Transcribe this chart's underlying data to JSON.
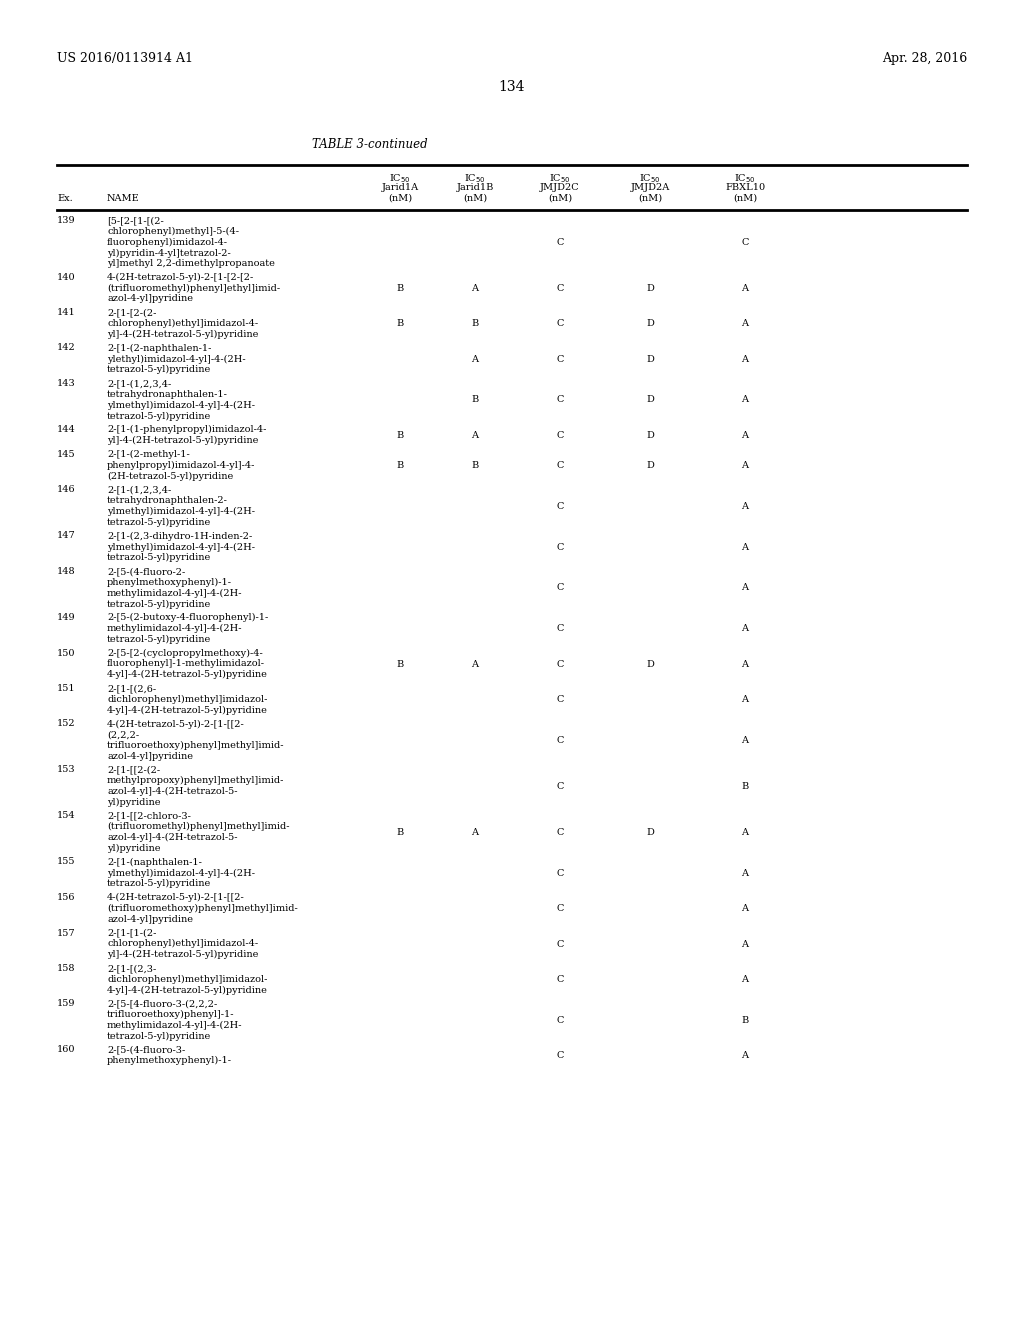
{
  "page_number": "134",
  "patent_number": "US 2016/0113914 A1",
  "patent_date": "Apr. 28, 2016",
  "table_title": "TABLE 3-continued",
  "rows": [
    {
      "ex": "139",
      "name": "[5-[2-[1-[(2-\nchlorophenyl)methyl]-5-(4-\nfluorophenyl)imidazol-4-\nyl)pyridin-4-yl]tetrazol-2-\nyl]methyl 2,2-dimethylpropanoate",
      "c1": "",
      "c2": "",
      "c3": "C",
      "c4": "",
      "c5": "C",
      "nlines": 5
    },
    {
      "ex": "140",
      "name": "4-(2H-tetrazol-5-yl)-2-[1-[2-[2-\n(trifluoromethyl)phenyl]ethyl]imid-\nazol-4-yl]pyridine",
      "c1": "B",
      "c2": "A",
      "c3": "C",
      "c4": "D",
      "c5": "A",
      "nlines": 3
    },
    {
      "ex": "141",
      "name": "2-[1-[2-(2-\nchlorophenyl)ethyl]imidazol-4-\nyl]-4-(2H-tetrazol-5-yl)pyridine",
      "c1": "B",
      "c2": "B",
      "c3": "C",
      "c4": "D",
      "c5": "A",
      "nlines": 3
    },
    {
      "ex": "142",
      "name": "2-[1-(2-naphthalen-1-\nylethyl)imidazol-4-yl]-4-(2H-\ntetrazol-5-yl)pyridine",
      "c1": "",
      "c2": "A",
      "c3": "C",
      "c4": "D",
      "c5": "A",
      "nlines": 3
    },
    {
      "ex": "143",
      "name": "2-[1-(1,2,3,4-\ntetrahydronaphthalen-1-\nylmethyl)imidazol-4-yl]-4-(2H-\ntetrazol-5-yl)pyridine",
      "c1": "",
      "c2": "B",
      "c3": "C",
      "c4": "D",
      "c5": "A",
      "nlines": 4
    },
    {
      "ex": "144",
      "name": "2-[1-(1-phenylpropyl)imidazol-4-\nyl]-4-(2H-tetrazol-5-yl)pyridine",
      "c1": "B",
      "c2": "A",
      "c3": "C",
      "c4": "D",
      "c5": "A",
      "nlines": 2
    },
    {
      "ex": "145",
      "name": "2-[1-(2-methyl-1-\nphenylpropyl)imidazol-4-yl]-4-\n(2H-tetrazol-5-yl)pyridine",
      "c1": "B",
      "c2": "B",
      "c3": "C",
      "c4": "D",
      "c5": "A",
      "nlines": 3
    },
    {
      "ex": "146",
      "name": "2-[1-(1,2,3,4-\ntetrahydronaphthalen-2-\nylmethyl)imidazol-4-yl]-4-(2H-\ntetrazol-5-yl)pyridine",
      "c1": "",
      "c2": "",
      "c3": "C",
      "c4": "",
      "c5": "A",
      "nlines": 4
    },
    {
      "ex": "147",
      "name": "2-[1-(2,3-dihydro-1H-inden-2-\nylmethyl)imidazol-4-yl]-4-(2H-\ntetrazol-5-yl)pyridine",
      "c1": "",
      "c2": "",
      "c3": "C",
      "c4": "",
      "c5": "A",
      "nlines": 3
    },
    {
      "ex": "148",
      "name": "2-[5-(4-fluoro-2-\nphenylmethoxyphenyl)-1-\nmethylimidazol-4-yl]-4-(2H-\ntetrazol-5-yl)pyridine",
      "c1": "",
      "c2": "",
      "c3": "C",
      "c4": "",
      "c5": "A",
      "nlines": 4
    },
    {
      "ex": "149",
      "name": "2-[5-(2-butoxy-4-fluorophenyl)-1-\nmethylimidazol-4-yl]-4-(2H-\ntetrazol-5-yl)pyridine",
      "c1": "",
      "c2": "",
      "c3": "C",
      "c4": "",
      "c5": "A",
      "nlines": 3
    },
    {
      "ex": "150",
      "name": "2-[5-[2-(cyclopropylmethoxy)-4-\nfluorophenyl]-1-methylimidazol-\n4-yl]-4-(2H-tetrazol-5-yl)pyridine",
      "c1": "B",
      "c2": "A",
      "c3": "C",
      "c4": "D",
      "c5": "A",
      "nlines": 3
    },
    {
      "ex": "151",
      "name": "2-[1-[(2,6-\ndichlorophenyl)methyl]imidazol-\n4-yl]-4-(2H-tetrazol-5-yl)pyridine",
      "c1": "",
      "c2": "",
      "c3": "C",
      "c4": "",
      "c5": "A",
      "nlines": 3
    },
    {
      "ex": "152",
      "name": "4-(2H-tetrazol-5-yl)-2-[1-[[2-\n(2,2,2-\ntrifluoroethoxy)phenyl]methyl]imid-\nazol-4-yl]pyridine",
      "c1": "",
      "c2": "",
      "c3": "C",
      "c4": "",
      "c5": "A",
      "nlines": 4
    },
    {
      "ex": "153",
      "name": "2-[1-[[2-(2-\nmethylpropoxy)phenyl]methyl]imid-\nazol-4-yl]-4-(2H-tetrazol-5-\nyl)pyridine",
      "c1": "",
      "c2": "",
      "c3": "C",
      "c4": "",
      "c5": "B",
      "nlines": 4
    },
    {
      "ex": "154",
      "name": "2-[1-[[2-chloro-3-\n(trifluoromethyl)phenyl]methyl]imid-\nazol-4-yl]-4-(2H-tetrazol-5-\nyl)pyridine",
      "c1": "B",
      "c2": "A",
      "c3": "C",
      "c4": "D",
      "c5": "A",
      "nlines": 4
    },
    {
      "ex": "155",
      "name": "2-[1-(naphthalen-1-\nylmethyl)imidazol-4-yl]-4-(2H-\ntetrazol-5-yl)pyridine",
      "c1": "",
      "c2": "",
      "c3": "C",
      "c4": "",
      "c5": "A",
      "nlines": 3
    },
    {
      "ex": "156",
      "name": "4-(2H-tetrazol-5-yl)-2-[1-[[2-\n(trifluoromethoxy)phenyl]methyl]imid-\nazol-4-yl]pyridine",
      "c1": "",
      "c2": "",
      "c3": "C",
      "c4": "",
      "c5": "A",
      "nlines": 3
    },
    {
      "ex": "157",
      "name": "2-[1-[1-(2-\nchlorophenyl)ethyl]imidazol-4-\nyl]-4-(2H-tetrazol-5-yl)pyridine",
      "c1": "",
      "c2": "",
      "c3": "C",
      "c4": "",
      "c5": "A",
      "nlines": 3
    },
    {
      "ex": "158",
      "name": "2-[1-[(2,3-\ndichlorophenyl)methyl]imidazol-\n4-yl]-4-(2H-tetrazol-5-yl)pyridine",
      "c1": "",
      "c2": "",
      "c3": "C",
      "c4": "",
      "c5": "A",
      "nlines": 3
    },
    {
      "ex": "159",
      "name": "2-[5-[4-fluoro-3-(2,2,2-\ntrifluoroethoxy)phenyl]-1-\nmethylimidazol-4-yl]-4-(2H-\ntetrazol-5-yl)pyridine",
      "c1": "",
      "c2": "",
      "c3": "C",
      "c4": "",
      "c5": "B",
      "nlines": 4
    },
    {
      "ex": "160",
      "name": "2-[5-(4-fluoro-3-\nphenylmethoxyphenyl)-1-",
      "c1": "",
      "c2": "",
      "c3": "C",
      "c4": "",
      "c5": "A",
      "nlines": 2
    }
  ],
  "bg_color": "#ffffff",
  "text_color": "#000000",
  "font_size": 7.0,
  "header_font_size": 7.0
}
